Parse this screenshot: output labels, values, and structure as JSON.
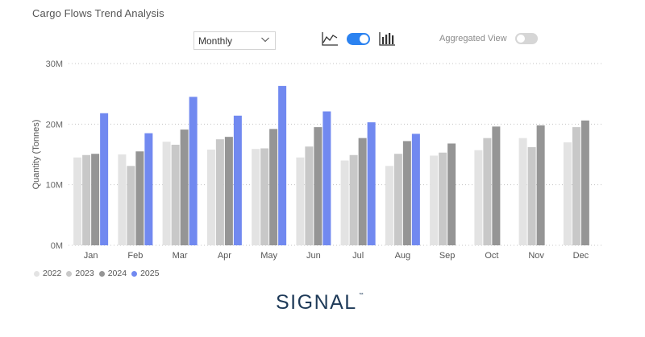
{
  "header": {
    "title": "Cargo Flows Trend Analysis"
  },
  "controls": {
    "period_select": "Monthly",
    "aggregated_view_label": "Aggregated View",
    "line_icon": "line-chart-icon",
    "toggle_state": "on",
    "bar_icon": "bar-chart-icon",
    "aggregated_toggle_state": "off"
  },
  "logo": {
    "text": "SIGNAL",
    "tm": "™"
  },
  "chart_data": {
    "type": "bar",
    "title": "",
    "ylabel": "Quantity (Tonnes)",
    "xlabel": "",
    "ylim": [
      0,
      30000000
    ],
    "yticks": [
      {
        "value": 0,
        "label": "0M"
      },
      {
        "value": 10000000,
        "label": "10M"
      },
      {
        "value": 20000000,
        "label": "20M"
      },
      {
        "value": 30000000,
        "label": "30M"
      }
    ],
    "grid": true,
    "legend_position": "bottom-left",
    "categories": [
      "Jan",
      "Feb",
      "Mar",
      "Apr",
      "May",
      "Jun",
      "Jul",
      "Aug",
      "Sep",
      "Oct",
      "Nov",
      "Dec"
    ],
    "series": [
      {
        "name": "2022",
        "color": "#e3e3e3",
        "values": [
          14500000,
          15000000,
          17100000,
          15800000,
          15900000,
          14500000,
          14000000,
          13100000,
          14800000,
          15700000,
          17700000,
          17000000
        ]
      },
      {
        "name": "2023",
        "color": "#c8c8c8",
        "values": [
          14900000,
          13100000,
          16600000,
          17500000,
          16000000,
          16300000,
          14900000,
          15100000,
          15300000,
          17700000,
          16200000,
          19500000
        ]
      },
      {
        "name": "2024",
        "color": "#959595",
        "values": [
          15100000,
          15500000,
          19100000,
          17900000,
          19200000,
          19500000,
          17700000,
          17200000,
          16800000,
          19600000,
          19800000,
          20600000
        ]
      },
      {
        "name": "2025",
        "color": "#7189f0",
        "values": [
          21800000,
          18500000,
          24500000,
          21400000,
          26300000,
          22100000,
          20300000,
          18400000,
          null,
          null,
          null,
          null
        ]
      }
    ]
  }
}
